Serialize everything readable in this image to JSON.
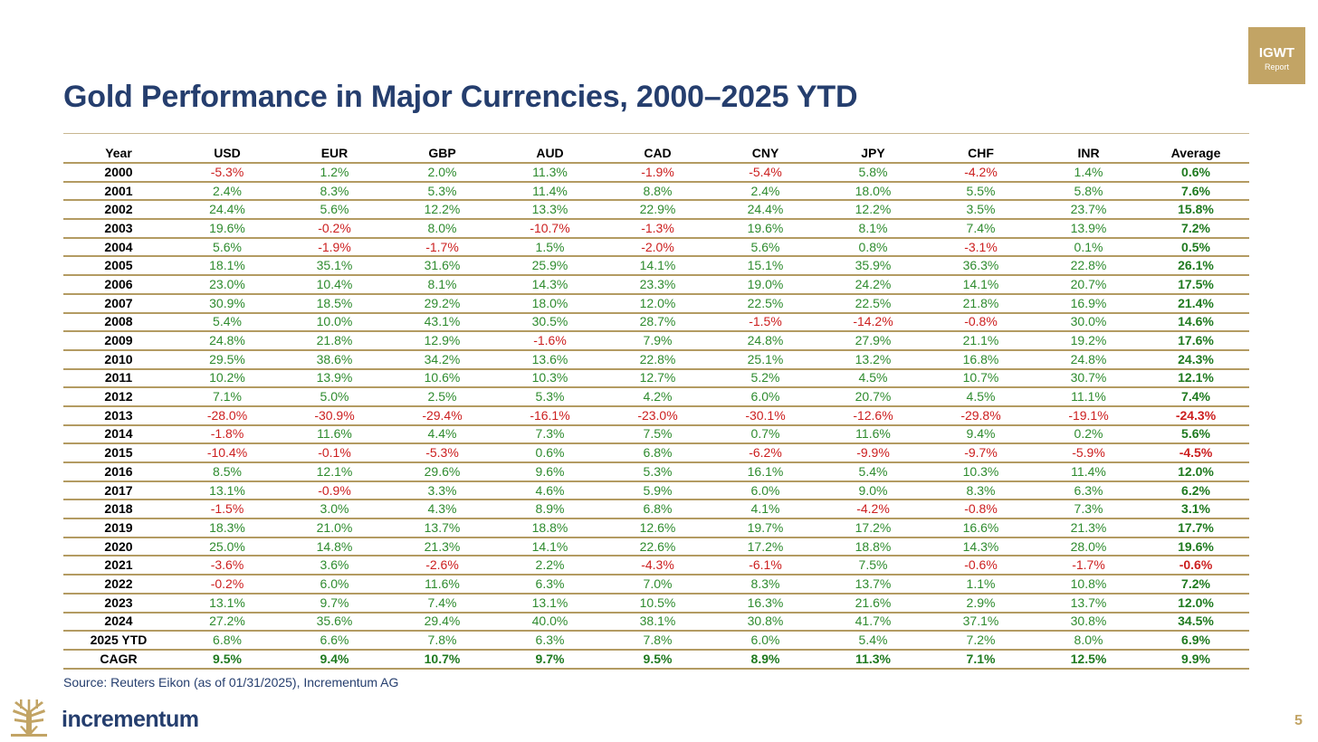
{
  "badge": {
    "line1": "IGWT",
    "line2": "Report"
  },
  "title": "Gold Performance in Major Currencies, 2000–2025 YTD",
  "source": "Source: Reuters Eikon (as of 01/31/2025), Incrementum AG",
  "brand": "incrementum",
  "page_number": "5",
  "colors": {
    "positive": "#2e8b2e",
    "negative": "#cc1f1f",
    "title": "#253e6e",
    "gold": "#c2a465"
  },
  "chart_data": {
    "type": "table",
    "title": "Gold Performance in Major Currencies, 2000–2025 YTD",
    "columns": [
      "Year",
      "USD",
      "EUR",
      "GBP",
      "AUD",
      "CAD",
      "CNY",
      "JPY",
      "CHF",
      "INR",
      "Average"
    ],
    "rows": [
      [
        "2000",
        "-5.3%",
        "1.2%",
        "2.0%",
        "11.3%",
        "-1.9%",
        "-5.4%",
        "5.8%",
        "-4.2%",
        "1.4%",
        "0.6%"
      ],
      [
        "2001",
        "2.4%",
        "8.3%",
        "5.3%",
        "11.4%",
        "8.8%",
        "2.4%",
        "18.0%",
        "5.5%",
        "5.8%",
        "7.6%"
      ],
      [
        "2002",
        "24.4%",
        "5.6%",
        "12.2%",
        "13.3%",
        "22.9%",
        "24.4%",
        "12.2%",
        "3.5%",
        "23.7%",
        "15.8%"
      ],
      [
        "2003",
        "19.6%",
        "-0.2%",
        "8.0%",
        "-10.7%",
        "-1.3%",
        "19.6%",
        "8.1%",
        "7.4%",
        "13.9%",
        "7.2%"
      ],
      [
        "2004",
        "5.6%",
        "-1.9%",
        "-1.7%",
        "1.5%",
        "-2.0%",
        "5.6%",
        "0.8%",
        "-3.1%",
        "0.1%",
        "0.5%"
      ],
      [
        "2005",
        "18.1%",
        "35.1%",
        "31.6%",
        "25.9%",
        "14.1%",
        "15.1%",
        "35.9%",
        "36.3%",
        "22.8%",
        "26.1%"
      ],
      [
        "2006",
        "23.0%",
        "10.4%",
        "8.1%",
        "14.3%",
        "23.3%",
        "19.0%",
        "24.2%",
        "14.1%",
        "20.7%",
        "17.5%"
      ],
      [
        "2007",
        "30.9%",
        "18.5%",
        "29.2%",
        "18.0%",
        "12.0%",
        "22.5%",
        "22.5%",
        "21.8%",
        "16.9%",
        "21.4%"
      ],
      [
        "2008",
        "5.4%",
        "10.0%",
        "43.1%",
        "30.5%",
        "28.7%",
        "-1.5%",
        "-14.2%",
        "-0.8%",
        "30.0%",
        "14.6%"
      ],
      [
        "2009",
        "24.8%",
        "21.8%",
        "12.9%",
        "-1.6%",
        "7.9%",
        "24.8%",
        "27.9%",
        "21.1%",
        "19.2%",
        "17.6%"
      ],
      [
        "2010",
        "29.5%",
        "38.6%",
        "34.2%",
        "13.6%",
        "22.8%",
        "25.1%",
        "13.2%",
        "16.8%",
        "24.8%",
        "24.3%"
      ],
      [
        "2011",
        "10.2%",
        "13.9%",
        "10.6%",
        "10.3%",
        "12.7%",
        "5.2%",
        "4.5%",
        "10.7%",
        "30.7%",
        "12.1%"
      ],
      [
        "2012",
        "7.1%",
        "5.0%",
        "2.5%",
        "5.3%",
        "4.2%",
        "6.0%",
        "20.7%",
        "4.5%",
        "11.1%",
        "7.4%"
      ],
      [
        "2013",
        "-28.0%",
        "-30.9%",
        "-29.4%",
        "-16.1%",
        "-23.0%",
        "-30.1%",
        "-12.6%",
        "-29.8%",
        "-19.1%",
        "-24.3%"
      ],
      [
        "2014",
        "-1.8%",
        "11.6%",
        "4.4%",
        "7.3%",
        "7.5%",
        "0.7%",
        "11.6%",
        "9.4%",
        "0.2%",
        "5.6%"
      ],
      [
        "2015",
        "-10.4%",
        "-0.1%",
        "-5.3%",
        "0.6%",
        "6.8%",
        "-6.2%",
        "-9.9%",
        "-9.7%",
        "-5.9%",
        "-4.5%"
      ],
      [
        "2016",
        "8.5%",
        "12.1%",
        "29.6%",
        "9.6%",
        "5.3%",
        "16.1%",
        "5.4%",
        "10.3%",
        "11.4%",
        "12.0%"
      ],
      [
        "2017",
        "13.1%",
        "-0.9%",
        "3.3%",
        "4.6%",
        "5.9%",
        "6.0%",
        "9.0%",
        "8.3%",
        "6.3%",
        "6.2%"
      ],
      [
        "2018",
        "-1.5%",
        "3.0%",
        "4.3%",
        "8.9%",
        "6.8%",
        "4.1%",
        "-4.2%",
        "-0.8%",
        "7.3%",
        "3.1%"
      ],
      [
        "2019",
        "18.3%",
        "21.0%",
        "13.7%",
        "18.8%",
        "12.6%",
        "19.7%",
        "17.2%",
        "16.6%",
        "21.3%",
        "17.7%"
      ],
      [
        "2020",
        "25.0%",
        "14.8%",
        "21.3%",
        "14.1%",
        "22.6%",
        "17.2%",
        "18.8%",
        "14.3%",
        "28.0%",
        "19.6%"
      ],
      [
        "2021",
        "-3.6%",
        "3.6%",
        "-2.6%",
        "2.2%",
        "-4.3%",
        "-6.1%",
        "7.5%",
        "-0.6%",
        "-1.7%",
        "-0.6%"
      ],
      [
        "2022",
        "-0.2%",
        "6.0%",
        "11.6%",
        "6.3%",
        "7.0%",
        "8.3%",
        "13.7%",
        "1.1%",
        "10.8%",
        "7.2%"
      ],
      [
        "2023",
        "13.1%",
        "9.7%",
        "7.4%",
        "13.1%",
        "10.5%",
        "16.3%",
        "21.6%",
        "2.9%",
        "13.7%",
        "12.0%"
      ],
      [
        "2024",
        "27.2%",
        "35.6%",
        "29.4%",
        "40.0%",
        "38.1%",
        "30.8%",
        "41.7%",
        "37.1%",
        "30.8%",
        "34.5%"
      ],
      [
        "2025 YTD",
        "6.8%",
        "6.6%",
        "7.8%",
        "6.3%",
        "7.8%",
        "6.0%",
        "5.4%",
        "7.2%",
        "8.0%",
        "6.9%"
      ],
      [
        "CAGR",
        "9.5%",
        "9.4%",
        "10.7%",
        "9.7%",
        "9.5%",
        "8.9%",
        "11.3%",
        "7.1%",
        "12.5%",
        "9.9%"
      ]
    ]
  }
}
